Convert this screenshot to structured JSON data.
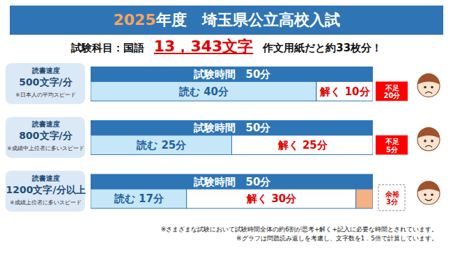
{
  "chart_data": {
    "type": "bar",
    "orientation": "horizontal",
    "stacked": true,
    "data_labels": true,
    "tick_labels": false,
    "title": "2025年度　埼玉県公立高校入試",
    "subtitle": [
      "試験科目：国語",
      "13，343文字",
      "作文用紙だと約33枚分！"
    ],
    "categories": [
      "500文字/分",
      "800文字/分",
      "1200文字/分以上"
    ],
    "category_heading": "読書速度",
    "category_notes": [
      "※日本人の平均スピード",
      "※成績中上位者に多いスピード",
      "※成績上位者に多いスピード"
    ],
    "total_label": "試験時間　50分",
    "xlim": [
      0,
      50
    ],
    "series": [
      {
        "color": "#c5e7f7",
        "values": [
          40,
          25,
          17
        ],
        "value_labels": [
          "読む 40分",
          "読む 25分",
          "読む 17分"
        ]
      },
      {
        "color": "#ffffff",
        "values": [
          10,
          25,
          30
        ],
        "value_labels": [
          "解く 10分",
          "解く 25分",
          "解く 30分"
        ]
      },
      {
        "color": "#f4b183",
        "values": [
          null,
          null,
          3
        ],
        "value_labels": [
          null,
          null,
          "余裕\n3分"
        ]
      }
    ],
    "shortfall": {
      "color": "#ff0000",
      "values": [
        20,
        5,
        null
      ],
      "value_labels": [
        "不足\n20分",
        "不足\n5分",
        null
      ]
    },
    "notes": [
      "※さまざまな試験において試験時間全体の約6割が思考+解く+記入に必要な時間とされています。",
      "※グラフは問題読み返しを考慮し、文字数を1．5倍で計算しています。"
    ]
  }
}
